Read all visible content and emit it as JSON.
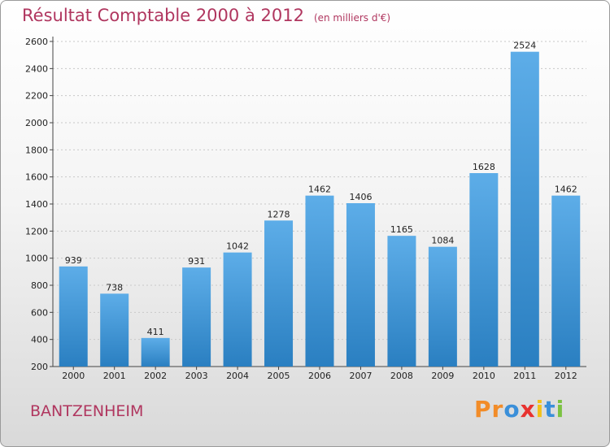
{
  "header": {
    "title": "Résultat Comptable 2000 à 2012",
    "subtitle": "(en milliers d'€)"
  },
  "footer": {
    "commune": "BANTZENHEIM",
    "logo_letters": [
      "P",
      "r",
      "o",
      "x",
      "i",
      "t",
      "i"
    ]
  },
  "colors": {
    "bar_top": "#5dade8",
    "bar_bottom": "#2a7fc1",
    "title": "#b0365f",
    "logo": [
      "#f28c28",
      "#f28c28",
      "#3a8fd9",
      "#e8322f",
      "#f2c11a",
      "#3a8fd9",
      "#7cc242"
    ]
  },
  "chart_data": {
    "type": "bar",
    "title": "Résultat Comptable 2000 à 2012",
    "subtitle": "(en milliers d'€)",
    "categories": [
      "2000",
      "2001",
      "2002",
      "2003",
      "2004",
      "2005",
      "2006",
      "2007",
      "2008",
      "2009",
      "2010",
      "2011",
      "2012"
    ],
    "values": [
      939,
      738,
      411,
      931,
      1042,
      1278,
      1462,
      1406,
      1165,
      1084,
      1628,
      2524,
      1462
    ],
    "ylim": [
      200,
      2600
    ],
    "yticks": [
      200,
      400,
      600,
      800,
      1000,
      1200,
      1400,
      1600,
      1800,
      2000,
      2200,
      2400,
      2600
    ],
    "grid": true,
    "legend": "none"
  }
}
